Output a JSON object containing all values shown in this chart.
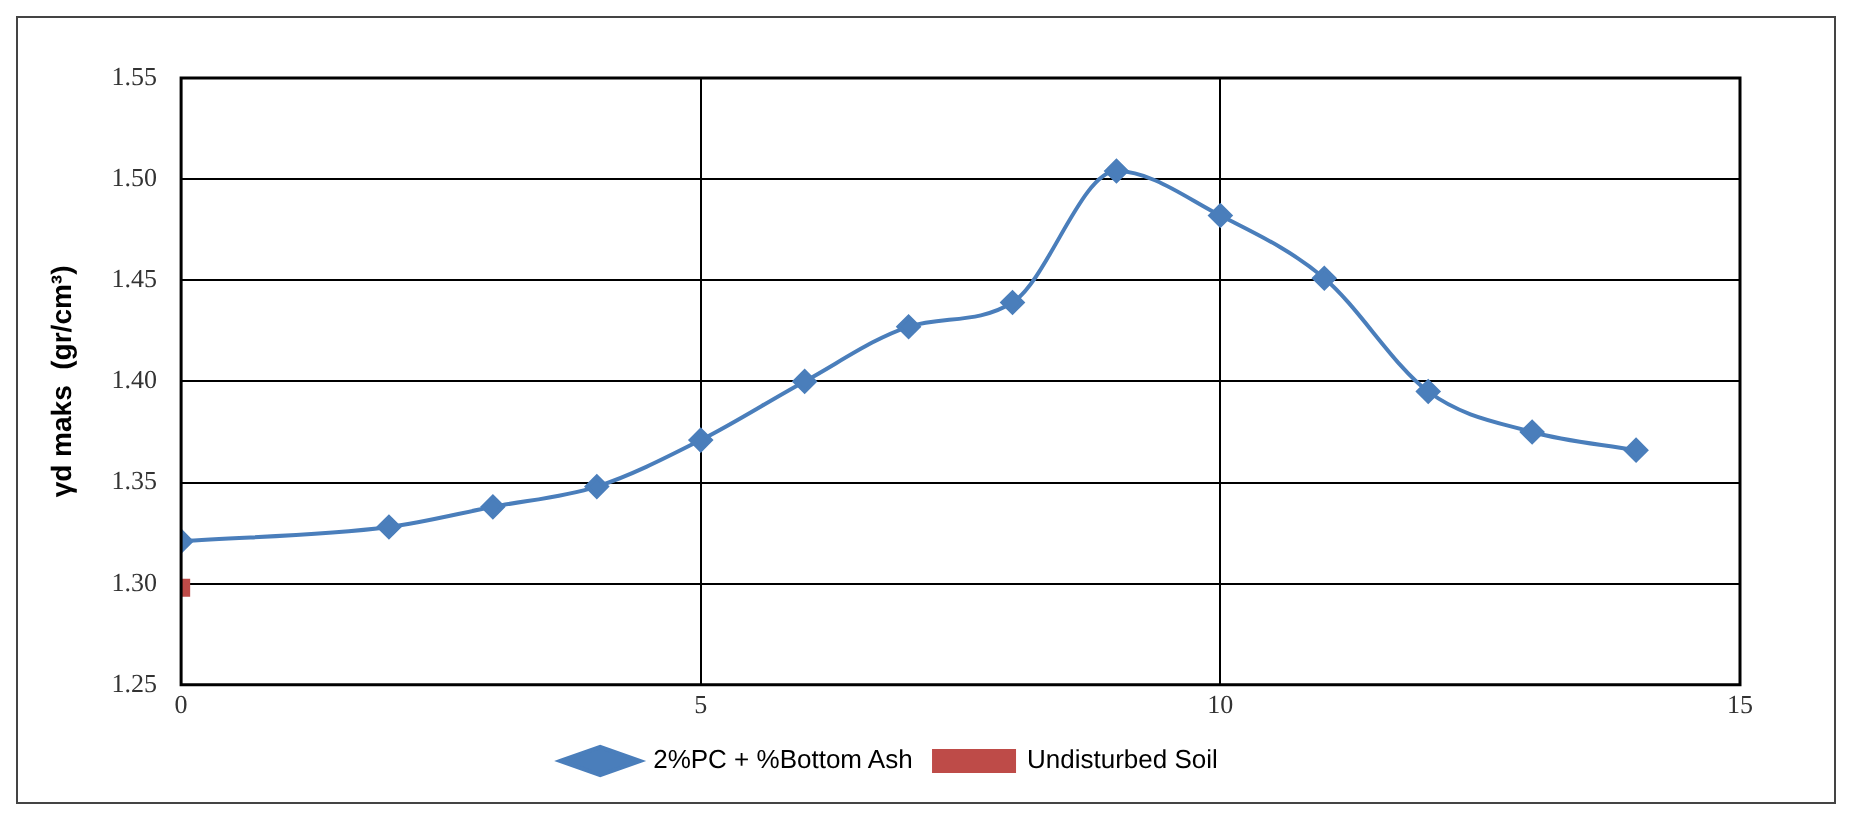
{
  "chart_data": {
    "type": "line",
    "ylabel": "γd maks  (gr/cm³)",
    "xlim": [
      0,
      15
    ],
    "xticks": [
      0,
      5,
      10,
      15
    ],
    "ylim": [
      1.25,
      1.55
    ],
    "yticks": [
      {
        "value": 1.25,
        "label": "1.25"
      },
      {
        "value": 1.3,
        "label": "1.30"
      },
      {
        "value": 1.35,
        "label": "1.35"
      },
      {
        "value": 1.4,
        "label": "1.40"
      },
      {
        "value": 1.45,
        "label": "1.45"
      },
      {
        "value": 1.5,
        "label": "1.50"
      },
      {
        "value": 1.55,
        "label": "1.55"
      }
    ],
    "grid": true,
    "legend": "bottom",
    "series": [
      {
        "name": "2%PC + %Bottom Ash",
        "color": "#4a7ebb",
        "marker": "diamond",
        "x": [
          0,
          2,
          3,
          4,
          5,
          6,
          7,
          8,
          9,
          10,
          11,
          12,
          13,
          14
        ],
        "values": [
          1.321,
          1.328,
          1.338,
          1.348,
          1.371,
          1.4,
          1.427,
          1.439,
          1.504,
          1.482,
          1.451,
          1.395,
          1.375,
          1.366
        ]
      },
      {
        "name": "Undisturbed Soil",
        "color": "#be4b48",
        "marker": "square",
        "x": [
          0
        ],
        "values": [
          1.298
        ]
      }
    ]
  }
}
